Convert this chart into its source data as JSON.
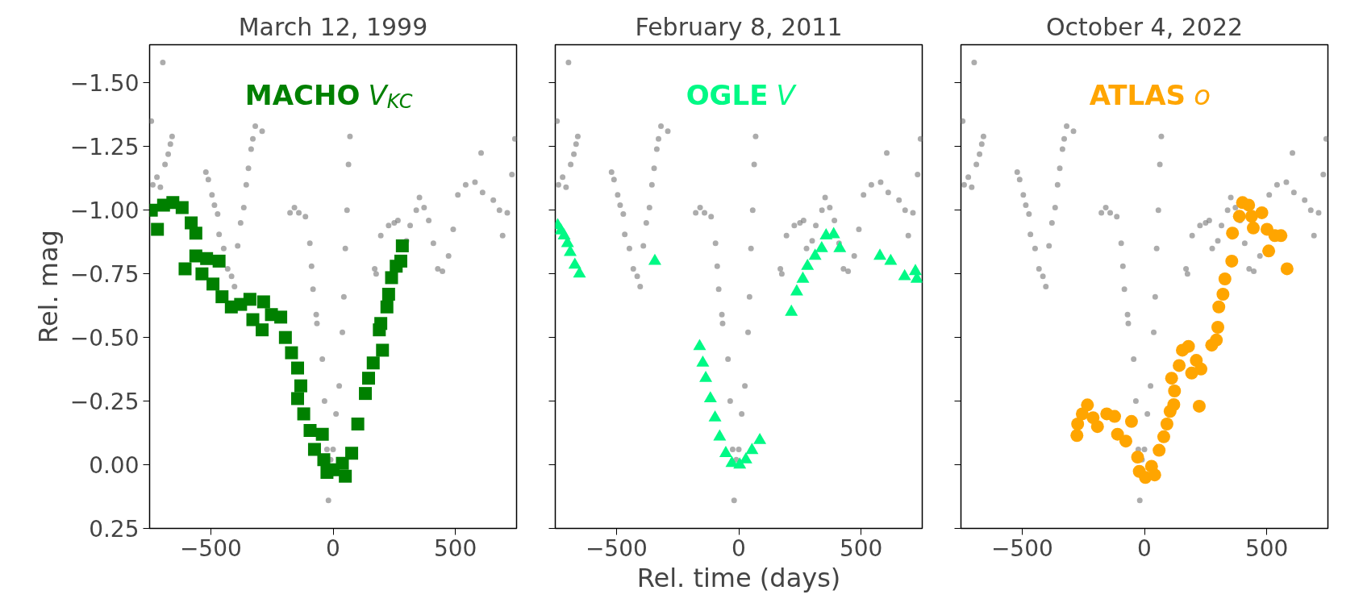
{
  "chart_data": [
    {
      "type": "scatter",
      "title": "March 12, 1999",
      "ylabel": "Rel. mag",
      "xlim": [
        -750,
        750
      ],
      "ylim": [
        0.25,
        -1.65
      ],
      "xticks": [
        -500,
        0,
        500
      ],
      "yticks": [
        {
          "value": -1.5,
          "label": "−1.50"
        },
        {
          "value": -1.25,
          "label": "−1.25"
        },
        {
          "value": -1.0,
          "label": "−1.00"
        },
        {
          "value": -0.75,
          "label": "−0.75"
        },
        {
          "value": -0.5,
          "label": "−0.50"
        },
        {
          "value": -0.25,
          "label": "−0.25"
        },
        {
          "value": 0,
          "label": "0.00"
        },
        {
          "value": 0.25,
          "label": "0.25"
        }
      ],
      "series": [
        {
          "color": "#808080",
          "marker": "circle",
          "x": [
            -743,
            -737,
            -720,
            -706,
            -687,
            -674,
            -665,
            -658,
            -696,
            -520,
            -510,
            -495,
            -485,
            -472,
            -466,
            -447,
            -431,
            -415,
            -403,
            -390,
            -378,
            -365,
            -355,
            -346,
            -335,
            -328,
            -318,
            -290,
            -176,
            -158,
            -140,
            -113,
            -95,
            -88,
            -82,
            -69,
            -66,
            -44,
            -35,
            -25,
            -19,
            -10,
            0,
            12,
            25,
            38,
            44,
            50,
            57,
            63,
            69,
            170,
            176,
            195,
            227,
            250,
            265,
            300,
            315,
            340,
            353,
            372,
            391,
            410,
            428,
            447,
            472,
            491,
            510,
            542,
            580,
            605,
            611,
            655,
            680,
            693,
            712,
            731,
            743
          ],
          "values": [
            -1.35,
            -1.1,
            -1.13,
            -1.09,
            -1.18,
            -1.22,
            -1.26,
            -1.29,
            -1.58,
            -1.15,
            -1.12,
            -1.06,
            -1.02,
            -0.985,
            -0.905,
            -0.85,
            -0.77,
            -0.74,
            -0.7,
            -0.86,
            -0.95,
            -1.01,
            -1.1,
            -1.165,
            -1.24,
            -1.28,
            -1.33,
            -1.31,
            -0.99,
            -1.01,
            -0.99,
            -0.975,
            -0.87,
            -0.78,
            -0.69,
            -0.59,
            -0.555,
            -0.415,
            -0.25,
            -0.06,
            0.14,
            -0.02,
            -0.06,
            -0.2,
            -0.31,
            -0.52,
            -0.66,
            -0.85,
            -1.0,
            -1.18,
            -1.29,
            -0.77,
            -0.75,
            -0.9,
            -0.94,
            -0.95,
            -0.96,
            -0.88,
            -0.94,
            -1.0,
            -1.05,
            -1.01,
            -0.96,
            -0.87,
            -0.77,
            -0.76,
            -0.82,
            -0.925,
            -1.06,
            -1.1,
            -1.11,
            -1.225,
            -1.07,
            -1.04,
            -1.0,
            -0.9,
            -0.99,
            -1.14,
            -1.28
          ]
        },
        {
          "name": "MACHO V$_{KC}$",
          "color": "#008000",
          "marker": "square",
          "x": [
            -743,
            -718,
            -693,
            -655,
            -617,
            -580,
            -561,
            -605,
            -561,
            -517,
            -536,
            -466,
            -491,
            -454,
            -416,
            -378,
            -340,
            -328,
            -290,
            -284,
            -252,
            -214,
            -195,
            -170,
            -145,
            -132,
            -145,
            -120,
            -94,
            -44,
            -76,
            -38,
            -25,
            0,
            38,
            50,
            76,
            101,
            132,
            145,
            164,
            202,
            189,
            195,
            220,
            227,
            239,
            258,
            277,
            283
          ],
          "values": [
            -1.0,
            -0.925,
            -1.02,
            -1.03,
            -1.01,
            -0.95,
            -0.91,
            -0.77,
            -0.82,
            -0.81,
            -0.75,
            -0.8,
            -0.71,
            -0.66,
            -0.62,
            -0.63,
            -0.65,
            -0.57,
            -0.53,
            -0.64,
            -0.59,
            -0.58,
            -0.5,
            -0.44,
            -0.38,
            -0.31,
            -0.26,
            -0.2,
            -0.135,
            -0.12,
            -0.06,
            -0.02,
            0.03,
            0.02,
            -0.006,
            0.045,
            -0.045,
            -0.16,
            -0.28,
            -0.34,
            -0.4,
            -0.45,
            -0.53,
            -0.555,
            -0.62,
            -0.67,
            -0.735,
            -0.78,
            -0.8,
            -0.86
          ]
        }
      ]
    },
    {
      "type": "scatter",
      "title": "February 8, 2011",
      "xlabel": "Rel. time (days)",
      "tick_labels": "x",
      "xlim": [
        -750,
        750
      ],
      "ylim": [
        0.25,
        -1.65
      ],
      "xticks": [
        -500,
        0,
        500
      ],
      "yticks": [
        -1.5,
        -1.25,
        -1.0,
        -0.75,
        -0.5,
        -0.25,
        0,
        0.25
      ],
      "series": [
        {
          "color": "#808080",
          "marker": "circle",
          "x": [
            -743,
            -737,
            -720,
            -706,
            -687,
            -674,
            -665,
            -658,
            -696,
            -520,
            -510,
            -495,
            -485,
            -472,
            -466,
            -447,
            -431,
            -415,
            -403,
            -390,
            -378,
            -365,
            -355,
            -346,
            -335,
            -328,
            -318,
            -290,
            -176,
            -158,
            -140,
            -113,
            -95,
            -88,
            -82,
            -69,
            -66,
            -44,
            -35,
            -25,
            -19,
            -10,
            0,
            12,
            25,
            38,
            44,
            50,
            57,
            63,
            69,
            170,
            176,
            195,
            227,
            250,
            265,
            277,
            300,
            315,
            340,
            353,
            372,
            391,
            410,
            428,
            447,
            472,
            491,
            510,
            542,
            580,
            605,
            611,
            655,
            680,
            693,
            712,
            731,
            743
          ],
          "values": [
            -1.35,
            -1.1,
            -1.13,
            -1.09,
            -1.18,
            -1.22,
            -1.26,
            -1.29,
            -1.58,
            -1.15,
            -1.12,
            -1.06,
            -1.02,
            -0.985,
            -0.905,
            -0.85,
            -0.77,
            -0.74,
            -0.7,
            -0.86,
            -0.95,
            -1.01,
            -1.1,
            -1.165,
            -1.24,
            -1.28,
            -1.33,
            -1.31,
            -0.99,
            -1.01,
            -0.99,
            -0.975,
            -0.87,
            -0.78,
            -0.69,
            -0.59,
            -0.555,
            -0.415,
            -0.25,
            -0.06,
            0.14,
            -0.02,
            -0.06,
            -0.2,
            -0.31,
            -0.52,
            -0.66,
            -0.85,
            -1.0,
            -1.18,
            -1.29,
            -0.77,
            -0.75,
            -0.9,
            -0.94,
            -0.95,
            -0.96,
            -0.85,
            -0.88,
            -0.94,
            -1.0,
            -1.05,
            -1.01,
            -0.96,
            -0.87,
            -0.77,
            -0.76,
            -0.82,
            -0.925,
            -1.06,
            -1.1,
            -1.11,
            -1.225,
            -1.07,
            -1.04,
            -1.0,
            -0.9,
            -0.99,
            -1.14,
            -1.28
          ]
        },
        {
          "name": "OGLE V",
          "color": "#00f985",
          "marker": "triangle",
          "x": [
            -740,
            -727,
            -714,
            -700,
            -689,
            -670,
            -651,
            -343,
            -160,
            -147,
            -135,
            -116,
            -97,
            -78,
            -53,
            -28,
            4,
            29,
            54,
            86,
            215,
            237,
            262,
            281,
            312,
            339,
            357,
            388,
            413,
            577,
            621,
            678,
            722,
            728
          ],
          "values": [
            -0.94,
            -0.92,
            -0.9,
            -0.87,
            -0.835,
            -0.785,
            -0.75,
            -0.8,
            -0.465,
            -0.4,
            -0.34,
            -0.26,
            -0.185,
            -0.11,
            -0.045,
            -0.006,
            0,
            -0.02,
            -0.057,
            -0.096,
            -0.6,
            -0.68,
            -0.73,
            -0.78,
            -0.82,
            -0.85,
            -0.9,
            -0.905,
            -0.85,
            -0.82,
            -0.8,
            -0.74,
            -0.76,
            -0.73
          ]
        }
      ]
    },
    {
      "type": "scatter",
      "title": "October 4, 2022",
      "tick_labels": "x",
      "xlim": [
        -750,
        750
      ],
      "ylim": [
        0.25,
        -1.65
      ],
      "xticks": [
        -500,
        0,
        500
      ],
      "yticks": [
        -1.5,
        -1.25,
        -1.0,
        -0.75,
        -0.5,
        -0.25,
        0,
        0.25
      ],
      "series": [
        {
          "color": "#808080",
          "marker": "circle",
          "x": [
            -743,
            -737,
            -720,
            -706,
            -687,
            -674,
            -665,
            -658,
            -696,
            -520,
            -510,
            -495,
            -485,
            -472,
            -466,
            -447,
            -431,
            -415,
            -403,
            -390,
            -378,
            -365,
            -355,
            -346,
            -335,
            -328,
            -318,
            -290,
            -176,
            -158,
            -140,
            -113,
            -95,
            -88,
            -82,
            -69,
            -66,
            -44,
            -35,
            -25,
            -19,
            -10,
            0,
            12,
            25,
            38,
            44,
            50,
            57,
            63,
            69,
            170,
            176,
            195,
            227,
            250,
            265,
            277,
            300,
            315,
            340,
            353,
            372,
            391,
            410,
            428,
            447,
            472,
            510,
            542,
            580,
            605,
            611,
            655,
            680,
            693,
            712,
            731,
            743
          ],
          "values": [
            -1.35,
            -1.1,
            -1.13,
            -1.09,
            -1.18,
            -1.22,
            -1.26,
            -1.29,
            -1.58,
            -1.15,
            -1.12,
            -1.06,
            -1.02,
            -0.985,
            -0.905,
            -0.85,
            -0.77,
            -0.74,
            -0.7,
            -0.86,
            -0.95,
            -1.01,
            -1.1,
            -1.165,
            -1.24,
            -1.28,
            -1.33,
            -1.31,
            -0.99,
            -1.01,
            -0.99,
            -0.975,
            -0.87,
            -0.78,
            -0.69,
            -0.59,
            -0.555,
            -0.415,
            -0.25,
            -0.06,
            0.14,
            -0.02,
            -0.06,
            -0.2,
            -0.31,
            -0.52,
            -0.66,
            -0.85,
            -1.0,
            -1.18,
            -1.29,
            -0.77,
            -0.75,
            -0.9,
            -0.94,
            -0.95,
            -0.96,
            -0.85,
            -0.88,
            -0.94,
            -1.0,
            -1.05,
            -1.01,
            -0.96,
            -0.87,
            -0.77,
            -0.76,
            -0.82,
            -1.06,
            -1.1,
            -1.11,
            -1.225,
            -1.07,
            -1.04,
            -1.0,
            -0.9,
            -0.99,
            -1.14,
            -1.28
          ]
        },
        {
          "name": "ATLAS o",
          "color": "#ffa500",
          "marker": "circle",
          "x": [
            -276,
            -273,
            -254,
            -233,
            -210,
            -192,
            -154,
            -122,
            -110,
            -76,
            -53,
            -28,
            -21,
            4,
            29,
            42,
            60,
            79,
            92,
            105,
            120,
            123,
            111,
            142,
            155,
            180,
            193,
            212,
            231,
            224,
            275,
            294,
            300,
            304,
            321,
            329,
            357,
            360,
            388,
            401,
            426,
            438,
            445,
            480,
            501,
            508,
            533,
            558,
            583
          ],
          "values": [
            -0.115,
            -0.16,
            -0.2,
            -0.235,
            -0.185,
            -0.15,
            -0.2,
            -0.19,
            -0.12,
            -0.093,
            -0.17,
            -0.03,
            0.026,
            0.05,
            0.006,
            0.04,
            -0.057,
            -0.11,
            -0.16,
            -0.21,
            -0.236,
            -0.29,
            -0.34,
            -0.39,
            -0.45,
            -0.465,
            -0.36,
            -0.41,
            -0.376,
            -0.23,
            -0.47,
            -0.49,
            -0.54,
            -0.62,
            -0.67,
            -0.73,
            -0.8,
            -0.91,
            -0.976,
            -1.03,
            -1.02,
            -0.976,
            -0.93,
            -0.99,
            -0.925,
            -0.84,
            -0.9,
            -0.9,
            -0.77
          ]
        }
      ]
    }
  ]
}
